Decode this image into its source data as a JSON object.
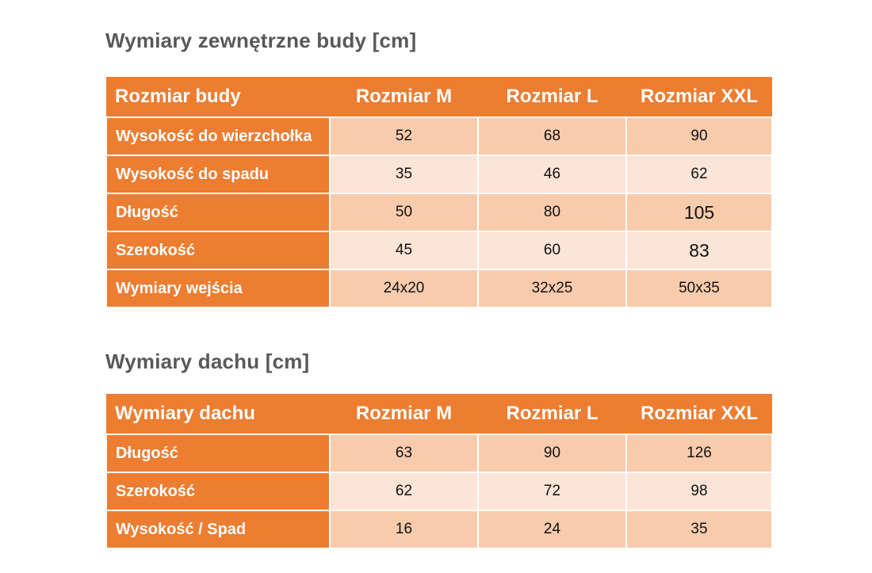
{
  "colors": {
    "accent_orange": "#ED7D31",
    "band_dark": "#F8CBAD",
    "band_light": "#FCE4D6",
    "title_gray": "#595959",
    "header_text": "#FFFFFF",
    "cell_text": "#111111",
    "background": "#FFFFFF"
  },
  "tables": [
    {
      "title": "Wymiary zewnętrzne budy [cm]",
      "header": [
        "Rozmiar budy",
        "Rozmiar M",
        "Rozmiar L",
        "Rozmiar XXL"
      ],
      "rows": [
        {
          "label": "Wysokość do wierzchołka",
          "values": [
            "52",
            "68",
            "90"
          ]
        },
        {
          "label": "Wysokość do spadu",
          "values": [
            "35",
            "46",
            "62"
          ]
        },
        {
          "label": "Długość",
          "values": [
            "50",
            "80",
            "105"
          ]
        },
        {
          "label": "Szerokość",
          "values": [
            "45",
            "60",
            "83"
          ]
        },
        {
          "label": "Wymiary wejścia",
          "values": [
            "24x20",
            "32x25",
            "50x35"
          ]
        }
      ]
    },
    {
      "title": "Wymiary dachu [cm]",
      "header": [
        "Wymiary dachu",
        "Rozmiar M",
        "Rozmiar L",
        "Rozmiar XXL"
      ],
      "rows": [
        {
          "label": "Długość",
          "values": [
            "63",
            "90",
            "126"
          ]
        },
        {
          "label": "Szerokość",
          "values": [
            "62",
            "72",
            "98"
          ]
        },
        {
          "label": "Wysokość / Spad",
          "values": [
            "16",
            "24",
            "35"
          ]
        }
      ]
    }
  ]
}
